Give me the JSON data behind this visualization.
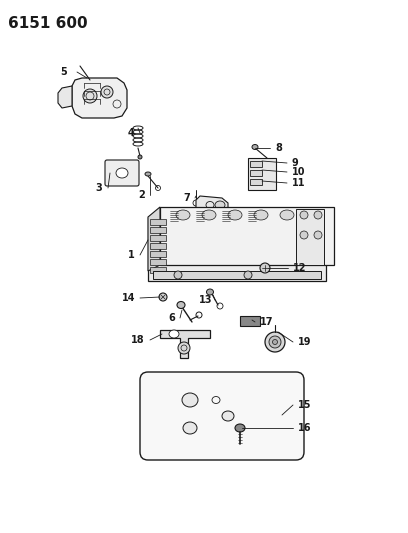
{
  "title": "6151 600",
  "bg": "#ffffff",
  "lc": "#1a1a1a",
  "figsize": [
    4.08,
    5.33
  ],
  "dpi": 100,
  "labels": [
    [
      "5",
      70,
      72,
      "right"
    ],
    [
      "4",
      137,
      133,
      "right"
    ],
    [
      "3",
      105,
      188,
      "right"
    ],
    [
      "2",
      148,
      195,
      "right"
    ],
    [
      "7",
      193,
      198,
      "right"
    ],
    [
      "8",
      272,
      148,
      "left"
    ],
    [
      "9",
      289,
      163,
      "left"
    ],
    [
      "10",
      289,
      172,
      "left"
    ],
    [
      "11",
      289,
      183,
      "left"
    ],
    [
      "1",
      138,
      255,
      "right"
    ],
    [
      "14",
      138,
      298,
      "right"
    ],
    [
      "6",
      178,
      318,
      "right"
    ],
    [
      "13",
      215,
      300,
      "right"
    ],
    [
      "12",
      290,
      268,
      "left"
    ],
    [
      "17",
      255,
      322,
      "left"
    ],
    [
      "18",
      148,
      340,
      "right"
    ],
    [
      "19",
      295,
      342,
      "left"
    ],
    [
      "15",
      295,
      405,
      "left"
    ],
    [
      "16",
      295,
      428,
      "left"
    ]
  ]
}
